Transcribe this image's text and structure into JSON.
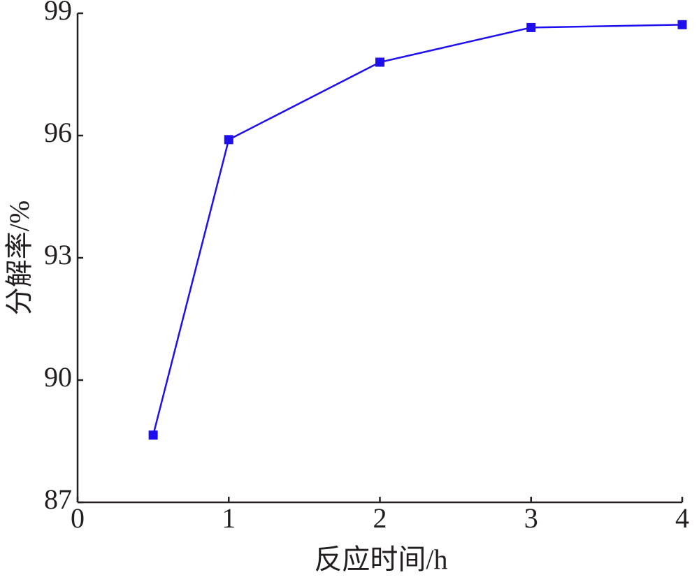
{
  "chart_data": {
    "type": "line",
    "x_label": "反应时间/h",
    "y_label": "分解率/%",
    "x": [
      0.5,
      1,
      2,
      3,
      4
    ],
    "series": [
      {
        "name": "分解率",
        "color": "#1e10ee",
        "values": [
          88.65,
          95.9,
          97.8,
          98.65,
          98.72
        ]
      }
    ],
    "xlim": [
      0,
      4
    ],
    "xticks": [
      0,
      1,
      2,
      3,
      4
    ],
    "ylim": [
      87,
      99
    ],
    "yticks": [
      87,
      90,
      93,
      96,
      99
    ],
    "grid": false,
    "marker": "square"
  }
}
